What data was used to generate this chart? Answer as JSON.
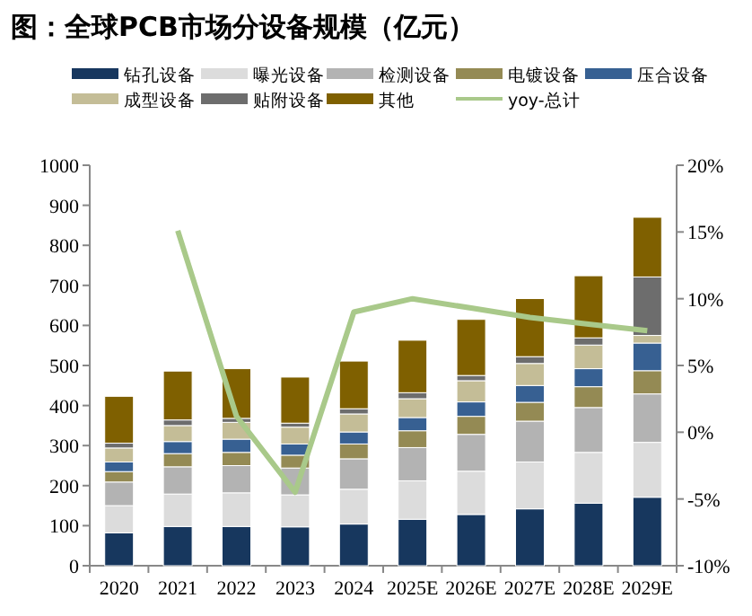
{
  "chart_data": {
    "type": "bar",
    "stacked": true,
    "title": "图：全球PCB市场分设备规模（亿元）",
    "legend": "top",
    "categories": [
      "2020",
      "2021",
      "2022",
      "2023",
      "2024",
      "2025E",
      "2026E",
      "2027E",
      "2028E",
      "2029E"
    ],
    "ylim": [
      0,
      1000
    ],
    "yticks": [
      0,
      100,
      200,
      300,
      400,
      500,
      600,
      700,
      800,
      900,
      1000
    ],
    "y2lim": [
      -10,
      20
    ],
    "y2ticks": [
      {
        "value": -10,
        "label": "-10%"
      },
      {
        "value": -5,
        "label": "-5%"
      },
      {
        "value": 0,
        "label": "0%"
      },
      {
        "value": 5,
        "label": "5%"
      },
      {
        "value": 10,
        "label": "10%"
      },
      {
        "value": 15,
        "label": "15%"
      },
      {
        "value": 20,
        "label": "20%"
      }
    ],
    "series": [
      {
        "name": "钻孔设备",
        "color": "#17375e",
        "values": [
          82,
          98,
          98,
          97,
          104,
          116,
          128,
          142,
          156,
          171
        ]
      },
      {
        "name": "曝光设备",
        "color": "#dcdcdc",
        "values": [
          68,
          81,
          84,
          80,
          87,
          96,
          108,
          117,
          127,
          137
        ]
      },
      {
        "name": "检测设备",
        "color": "#b3b3b3",
        "values": [
          59,
          68,
          68,
          67,
          76,
          83,
          92,
          102,
          112,
          121
        ]
      },
      {
        "name": "电镀设备",
        "color": "#948a54",
        "values": [
          26,
          33,
          33,
          32,
          37,
          42,
          45,
          47,
          52,
          58
        ]
      },
      {
        "name": "压合设备",
        "color": "#376092",
        "values": [
          24,
          30,
          33,
          28,
          30,
          33,
          36,
          42,
          45,
          69
        ]
      },
      {
        "name": "成型设备",
        "color": "#c4bd97",
        "values": [
          35,
          40,
          42,
          42,
          45,
          47,
          53,
          55,
          59,
          19
        ]
      },
      {
        "name": "贴附设备",
        "color": "#6d6d6d",
        "values": [
          12,
          14,
          10,
          10,
          13,
          15,
          13,
          17,
          18,
          146
        ]
      },
      {
        "name": "其他",
        "color": "#7f6000",
        "values": [
          117,
          122,
          124,
          115,
          119,
          131,
          140,
          145,
          155,
          149
        ]
      },
      {
        "name": "yoy-总计",
        "type": "line",
        "axis": "y2",
        "color": "#a9c98a",
        "values": [
          null,
          15.1,
          1.2,
          -4.5,
          9.0,
          10.0,
          9.3,
          8.6,
          8.1,
          7.6
        ]
      }
    ]
  }
}
